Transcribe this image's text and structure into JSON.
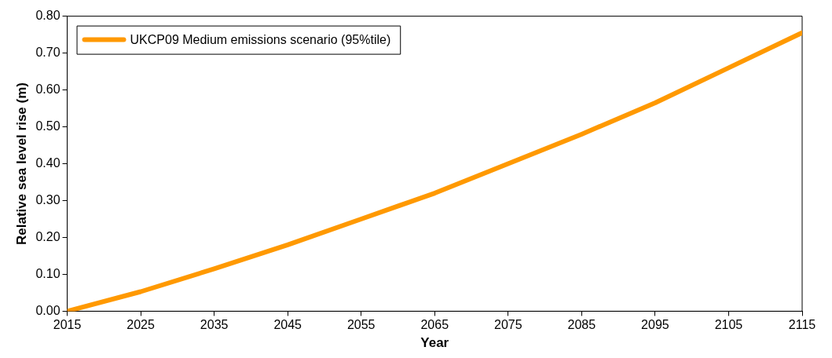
{
  "chart_data": {
    "type": "line",
    "xlabel": "Year",
    "ylabel": "Relative sea level rise (m)",
    "x": [
      2015,
      2025,
      2035,
      2045,
      2055,
      2065,
      2075,
      2085,
      2095,
      2105,
      2115
    ],
    "series": [
      {
        "name": "UKCP09 Medium emissions scenario (95%tile)",
        "color": "#ff9900",
        "values": [
          0,
          0.053,
          0.115,
          0.18,
          0.25,
          0.32,
          0.4,
          0.48,
          0.565,
          0.66,
          0.755
        ]
      }
    ],
    "xlim": [
      2015,
      2115
    ],
    "xticks": [
      2015,
      2025,
      2035,
      2045,
      2055,
      2065,
      2075,
      2085,
      2095,
      2105,
      2115
    ],
    "ylim": [
      0,
      0.8
    ],
    "yticks": [
      {
        "value": 0,
        "label": "0.00"
      },
      {
        "value": 0.1,
        "label": "0.10"
      },
      {
        "value": 0.2,
        "label": "0.20"
      },
      {
        "value": 0.3,
        "label": "0.30"
      },
      {
        "value": 0.4,
        "label": "0.40"
      },
      {
        "value": 0.5,
        "label": "0.50"
      },
      {
        "value": 0.6,
        "label": "0.60"
      },
      {
        "value": 0.7,
        "label": "0.70"
      },
      {
        "value": 0.8,
        "label": "0.80"
      }
    ],
    "grid": false,
    "legend": "top left",
    "marker": "none",
    "line_style": "solid"
  }
}
